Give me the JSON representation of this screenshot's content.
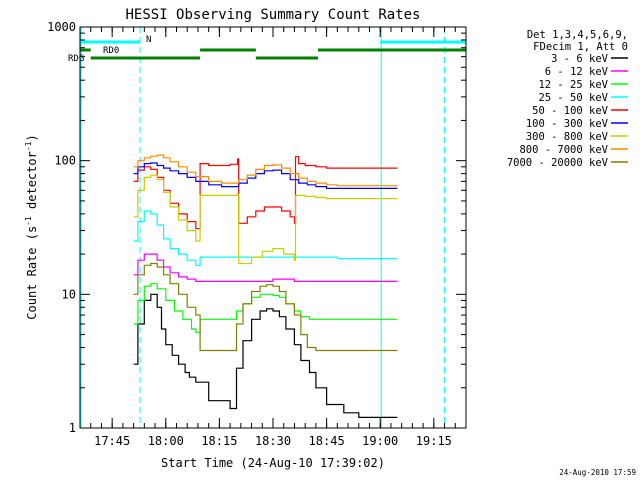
{
  "chart_data": {
    "type": "line",
    "title": "HESSI Observing Summary Count Rates",
    "xlabel": "Start Time (24-Aug-10 17:39:02)",
    "ylabel_main": "Count Rate (s",
    "ylabel_sup1": "-1",
    "ylabel_mid": " detector",
    "ylabel_sup2": "-1",
    "ylabel_end": ")",
    "ylog": true,
    "ylim": [
      1,
      1000
    ],
    "xlim_minutes": [
      17.6,
      19.4
    ],
    "x_ticks": [
      "17:45",
      "18:00",
      "18:15",
      "18:30",
      "18:45",
      "19:00",
      "19:15"
    ],
    "x_tick_values": [
      17.75,
      18.0,
      18.25,
      18.5,
      18.75,
      19.0,
      19.25
    ],
    "y_ticks": [
      "1",
      "10",
      "100",
      "1000"
    ],
    "y_tick_values": [
      1,
      10,
      100,
      1000
    ],
    "legend_header": [
      "Det 1,3,4,5,6,9,",
      "FDecim 1, Att 0"
    ],
    "series": [
      {
        "name": "3 - 6 keV",
        "color": "#000000",
        "x": [
          17.85,
          17.87,
          17.9,
          17.93,
          17.96,
          17.98,
          18.0,
          18.03,
          18.06,
          18.09,
          18.11,
          18.14,
          18.2,
          18.3,
          18.33,
          18.36,
          18.4,
          18.44,
          18.47,
          18.5,
          18.53,
          18.56,
          18.6,
          18.63,
          18.67,
          18.7,
          18.75,
          18.83,
          18.9,
          19.0,
          19.05
        ],
        "y": [
          3,
          6,
          9,
          10,
          8,
          5.5,
          4.2,
          3.5,
          3.0,
          2.6,
          2.4,
          2.2,
          1.6,
          1.4,
          2.8,
          4.5,
          6.5,
          7.5,
          7.8,
          7.5,
          6.8,
          5.5,
          4.2,
          3.2,
          2.6,
          2.0,
          1.5,
          1.3,
          1.2,
          1.2,
          1.2
        ]
      },
      {
        "name": "6 - 12 keV",
        "color": "#ff00ff",
        "x": [
          17.85,
          17.87,
          17.9,
          17.93,
          17.96,
          17.99,
          18.02,
          18.06,
          18.1,
          18.14,
          18.2,
          18.3,
          18.4,
          18.5,
          18.6,
          18.7,
          18.75,
          18.8,
          18.9,
          19.0,
          19.05
        ],
        "y": [
          14,
          18,
          20,
          20,
          18,
          16,
          14.5,
          13.5,
          13,
          12.5,
          12.5,
          12.5,
          12.5,
          13,
          12.5,
          12.5,
          12.5,
          12.5,
          12.5,
          12.5,
          12.5
        ]
      },
      {
        "name": "12 - 25 keV",
        "color": "#00ff00",
        "x": [
          17.85,
          17.87,
          17.9,
          17.93,
          17.96,
          18.0,
          18.04,
          18.08,
          18.12,
          18.14,
          18.16,
          18.2,
          18.25,
          18.3,
          18.33,
          18.36,
          18.4,
          18.44,
          18.47,
          18.5,
          18.53,
          18.56,
          18.6,
          18.63,
          18.67,
          18.7,
          18.73,
          18.76,
          18.8,
          18.9,
          19.0,
          19.05
        ],
        "y": [
          6,
          9,
          11.5,
          12,
          11,
          9,
          7.5,
          6.5,
          5.5,
          5.2,
          6.5,
          6.5,
          6.5,
          6.5,
          7.5,
          8.5,
          9.5,
          10,
          10,
          9.8,
          9.5,
          8.5,
          7.5,
          6.8,
          6.5,
          6.5,
          6.5,
          6.5,
          6.5,
          6.5,
          6.5,
          6.5
        ]
      },
      {
        "name": "25 - 50 keV",
        "color": "#00ffff",
        "x": [
          17.85,
          17.87,
          17.9,
          17.93,
          17.96,
          17.99,
          18.02,
          18.06,
          18.1,
          18.14,
          18.16,
          18.2,
          18.3,
          18.4,
          18.5,
          18.6,
          18.7,
          18.75,
          18.8,
          18.9,
          19.0,
          19.05
        ],
        "y": [
          25,
          35,
          42,
          40,
          33,
          26,
          22,
          20,
          18,
          16.5,
          19,
          19,
          19,
          19,
          19,
          19,
          19,
          19,
          18.5,
          18.5,
          18.5,
          18.5
        ]
      },
      {
        "name": "50 - 100 keV",
        "color": "#ff0000",
        "x": [
          17.85,
          17.87,
          17.9,
          17.93,
          17.96,
          17.99,
          18.02,
          18.06,
          18.1,
          18.14,
          18.16,
          18.2,
          18.25,
          18.3,
          18.335,
          18.34,
          18.38,
          18.42,
          18.46,
          18.5,
          18.54,
          18.58,
          18.6,
          18.605,
          18.62,
          18.65,
          18.7,
          18.75,
          18.8,
          18.85,
          18.9,
          18.95,
          19.0,
          19.05
        ],
        "y": [
          70,
          85,
          90,
          86,
          75,
          60,
          48,
          40,
          35,
          31,
          95,
          92,
          92,
          94,
          103,
          34,
          38,
          42,
          45,
          45,
          42,
          38,
          34,
          107,
          95,
          92,
          90,
          88,
          88,
          88,
          88,
          88,
          88,
          88
        ]
      },
      {
        "name": "100 - 300 keV",
        "color": "#0000ff",
        "x": [
          17.85,
          17.87,
          17.9,
          17.93,
          17.96,
          17.99,
          18.02,
          18.06,
          18.1,
          18.14,
          18.2,
          18.26,
          18.3,
          18.34,
          18.38,
          18.42,
          18.46,
          18.5,
          18.54,
          18.58,
          18.62,
          18.66,
          18.7,
          18.75,
          18.8,
          18.85,
          18.9,
          18.95,
          19.0,
          19.05
        ],
        "y": [
          80,
          90,
          95,
          96,
          92,
          88,
          84,
          80,
          75,
          70,
          66,
          64,
          64,
          68,
          74,
          80,
          84,
          85,
          80,
          72,
          68,
          66,
          64,
          62,
          62,
          62,
          62,
          62,
          62,
          62
        ]
      },
      {
        "name": "300 - 800 keV",
        "color": "#cccc00",
        "x": [
          17.85,
          17.87,
          17.9,
          17.93,
          17.96,
          17.99,
          18.02,
          18.06,
          18.1,
          18.14,
          18.16,
          18.2,
          18.25,
          18.3,
          18.335,
          18.34,
          18.4,
          18.45,
          18.5,
          18.55,
          18.6,
          18.605,
          18.65,
          18.7,
          18.75,
          18.8,
          18.9,
          19.0,
          19.05
        ],
        "y": [
          38,
          60,
          75,
          78,
          72,
          58,
          45,
          36,
          30,
          25,
          55,
          55,
          55,
          55,
          56,
          17,
          19,
          21,
          22,
          20,
          18,
          55,
          54,
          53,
          52,
          52,
          52,
          52,
          52
        ]
      },
      {
        "name": "800 - 7000 keV",
        "color": "#ff8c00",
        "x": [
          17.85,
          17.87,
          17.9,
          17.93,
          17.96,
          17.99,
          18.02,
          18.06,
          18.1,
          18.14,
          18.2,
          18.26,
          18.3,
          18.34,
          18.38,
          18.42,
          18.46,
          18.5,
          18.54,
          18.58,
          18.62,
          18.66,
          18.7,
          18.75,
          18.8,
          18.85,
          18.9,
          18.95,
          19.0,
          19.05
        ],
        "y": [
          90,
          100,
          105,
          108,
          110,
          105,
          98,
          90,
          82,
          76,
          70,
          68,
          68,
          72,
          78,
          86,
          92,
          93,
          88,
          80,
          74,
          70,
          68,
          66,
          65,
          65,
          65,
          65,
          65,
          65
        ]
      },
      {
        "name": "7000 - 20000 keV",
        "color": "#808000",
        "x": [
          17.85,
          17.87,
          17.9,
          17.93,
          17.96,
          17.99,
          18.02,
          18.06,
          18.1,
          18.14,
          18.16,
          18.2,
          18.25,
          18.3,
          18.33,
          18.36,
          18.4,
          18.44,
          18.47,
          18.5,
          18.53,
          18.56,
          18.6,
          18.63,
          18.66,
          18.7,
          18.75,
          18.8,
          18.9,
          19.0,
          19.05
        ],
        "y": [
          10,
          14,
          16.5,
          17,
          16,
          14,
          12,
          10,
          8,
          7,
          3.8,
          3.8,
          3.8,
          3.8,
          6,
          8.5,
          10.5,
          11.5,
          11.8,
          11.5,
          10.5,
          8.5,
          7,
          5,
          4,
          3.8,
          3.8,
          3.8,
          3.8,
          3.8,
          3.8
        ]
      }
    ],
    "flags": [
      {
        "label": "N",
        "color": "#00ffff",
        "segments": [
          [
            17.6,
            17.88
          ],
          [
            19.0,
            19.4
          ]
        ]
      },
      {
        "label": "RD0",
        "color": "#008000",
        "segments": [
          [
            17.6,
            17.65
          ],
          [
            18.16,
            18.42
          ],
          [
            18.71,
            19.4
          ]
        ]
      },
      {
        "label": "RDG",
        "color": "#008000",
        "segments": [
          [
            17.65,
            18.16
          ],
          [
            18.42,
            18.71
          ]
        ]
      }
    ],
    "vlines_solid": [
      17.6,
      19.0
    ],
    "vlines_dashed": [
      17.88,
      19.3
    ],
    "vline_color": "#00ffff"
  },
  "stamp": "24-Aug-2010 17:59"
}
